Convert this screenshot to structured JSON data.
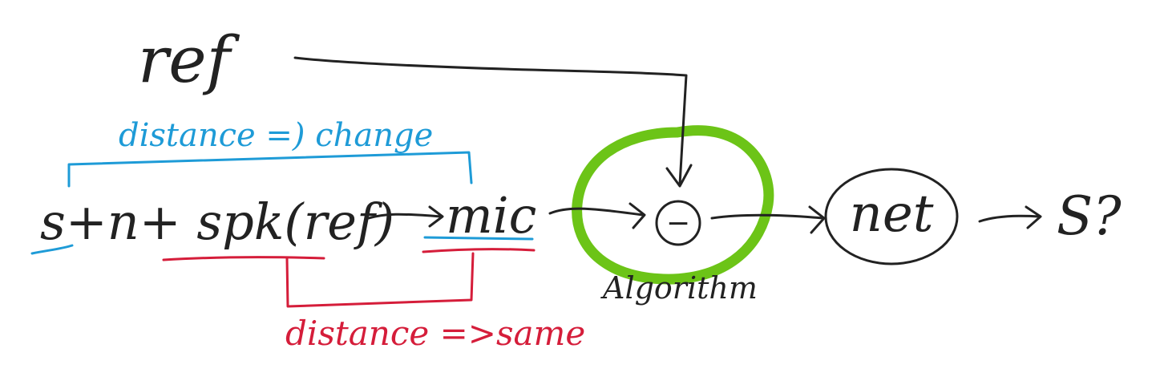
{
  "labels": {
    "ref": "ref",
    "distance_change": "distance =) change",
    "mixture": "s+n+ spk(ref)",
    "mic": "mic",
    "subtract": "−",
    "algorithm": "Algorithm",
    "net": "net",
    "output": "S?",
    "distance_same": "distance =>same"
  },
  "colors": {
    "ink": "#222222",
    "blue": "#1e9bd7",
    "red": "#d51d3a",
    "green": "#6cc417"
  }
}
